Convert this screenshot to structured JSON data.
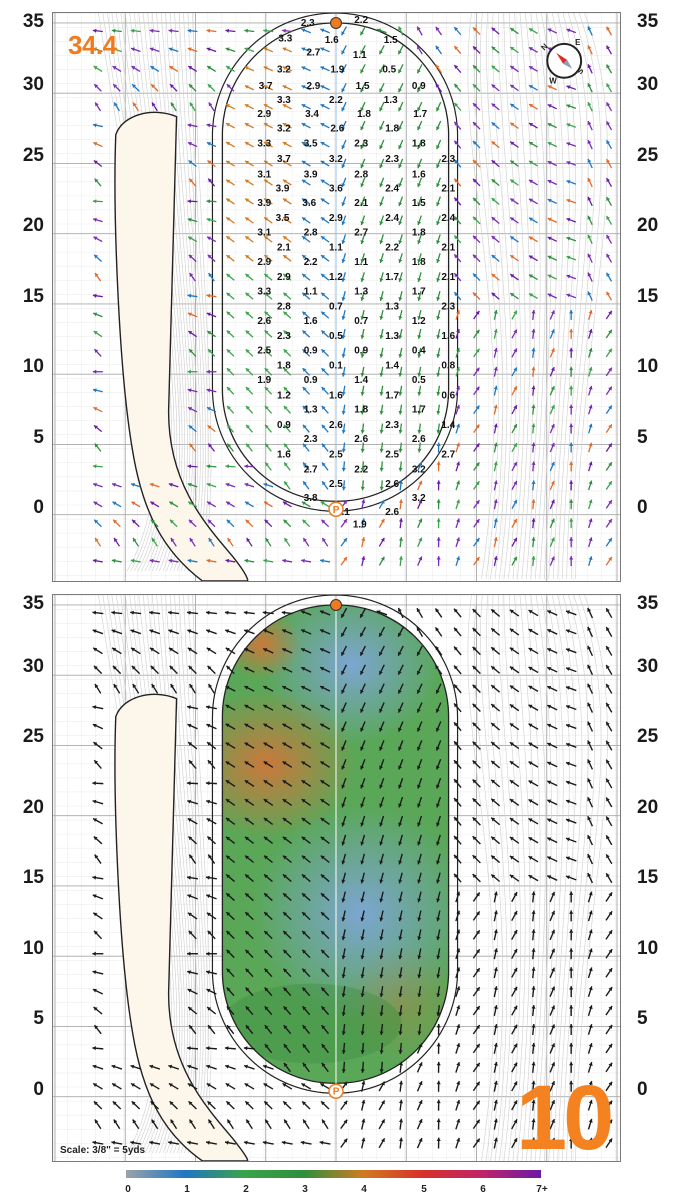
{
  "hole": {
    "number": "10",
    "yardage": "34.4"
  },
  "scale": {
    "label": "Scale: 3/8\" = 5yds"
  },
  "y_axis_ticks": [
    "35",
    "30",
    "25",
    "20",
    "15",
    "10",
    "5",
    "0"
  ],
  "compass": {
    "letters": [
      "N",
      "E",
      "S",
      "W"
    ]
  },
  "slope_legend": {
    "labels": [
      "0",
      "1",
      "2",
      "3",
      "4",
      "5",
      "6",
      "7+"
    ]
  },
  "slope_labels": [
    {
      "value": "2.3",
      "x": 3.6,
      "y": 34.4
    },
    {
      "value": "2.2",
      "x": 7.4,
      "y": 34.6
    },
    {
      "value": "3.3",
      "x": 2.0,
      "y": 33.3
    },
    {
      "value": "1.6",
      "x": 5.3,
      "y": 33.2
    },
    {
      "value": "1.5",
      "x": 9.5,
      "y": 33.2
    },
    {
      "value": "2.7",
      "x": 4.0,
      "y": 32.3
    },
    {
      "value": "1.1",
      "x": 7.3,
      "y": 32.1
    },
    {
      "value": "3.2",
      "x": 1.9,
      "y": 31.1
    },
    {
      "value": "1.9",
      "x": 5.7,
      "y": 31.1
    },
    {
      "value": "0.5",
      "x": 9.4,
      "y": 31.1
    },
    {
      "value": "3.7",
      "x": 0.6,
      "y": 29.9
    },
    {
      "value": "2.9",
      "x": 4.0,
      "y": 29.9
    },
    {
      "value": "1.5",
      "x": 7.5,
      "y": 29.9
    },
    {
      "value": "0.9",
      "x": 11.5,
      "y": 29.9
    },
    {
      "value": "3.3",
      "x": 1.9,
      "y": 28.9
    },
    {
      "value": "2.2",
      "x": 5.6,
      "y": 28.9
    },
    {
      "value": "1.3",
      "x": 9.5,
      "y": 28.9
    },
    {
      "value": "2.9",
      "x": 0.5,
      "y": 27.9
    },
    {
      "value": "3.4",
      "x": 3.9,
      "y": 27.9
    },
    {
      "value": "1.8",
      "x": 7.6,
      "y": 27.9
    },
    {
      "value": "1.7",
      "x": 11.6,
      "y": 27.9
    },
    {
      "value": "3.2",
      "x": 1.9,
      "y": 26.9
    },
    {
      "value": "2.6",
      "x": 5.7,
      "y": 26.9
    },
    {
      "value": "1.8",
      "x": 9.6,
      "y": 26.9
    },
    {
      "value": "3.3",
      "x": 0.5,
      "y": 25.8
    },
    {
      "value": "3.5",
      "x": 3.8,
      "y": 25.8
    },
    {
      "value": "2.3",
      "x": 7.4,
      "y": 25.8
    },
    {
      "value": "1.8",
      "x": 11.5,
      "y": 25.8
    },
    {
      "value": "3.7",
      "x": 1.9,
      "y": 24.7
    },
    {
      "value": "3.2",
      "x": 5.6,
      "y": 24.7
    },
    {
      "value": "2.3",
      "x": 9.6,
      "y": 24.7
    },
    {
      "value": "2.3",
      "x": 13.6,
      "y": 24.7
    },
    {
      "value": "3.1",
      "x": 0.5,
      "y": 23.6
    },
    {
      "value": "3.9",
      "x": 3.8,
      "y": 23.6
    },
    {
      "value": "2.8",
      "x": 7.4,
      "y": 23.6
    },
    {
      "value": "1.6",
      "x": 11.5,
      "y": 23.6
    },
    {
      "value": "3.9",
      "x": 1.8,
      "y": 22.6
    },
    {
      "value": "3.6",
      "x": 5.6,
      "y": 22.6
    },
    {
      "value": "2.4",
      "x": 9.6,
      "y": 22.6
    },
    {
      "value": "2.1",
      "x": 13.6,
      "y": 22.6
    },
    {
      "value": "3.9",
      "x": 0.5,
      "y": 21.6
    },
    {
      "value": "3.6",
      "x": 3.7,
      "y": 21.6
    },
    {
      "value": "2.1",
      "x": 7.4,
      "y": 21.6
    },
    {
      "value": "1.5",
      "x": 11.5,
      "y": 21.6
    },
    {
      "value": "3.5",
      "x": 1.8,
      "y": 20.5
    },
    {
      "value": "2.9",
      "x": 5.6,
      "y": 20.5
    },
    {
      "value": "2.4",
      "x": 9.6,
      "y": 20.5
    },
    {
      "value": "2.4",
      "x": 13.6,
      "y": 20.5
    },
    {
      "value": "3.1",
      "x": 0.5,
      "y": 19.5
    },
    {
      "value": "2.8",
      "x": 3.8,
      "y": 19.5
    },
    {
      "value": "2.7",
      "x": 7.4,
      "y": 19.5
    },
    {
      "value": "1.8",
      "x": 11.5,
      "y": 19.5
    },
    {
      "value": "2.1",
      "x": 1.9,
      "y": 18.4
    },
    {
      "value": "1.1",
      "x": 5.6,
      "y": 18.4
    },
    {
      "value": "2.2",
      "x": 9.6,
      "y": 18.4
    },
    {
      "value": "2.1",
      "x": 13.6,
      "y": 18.4
    },
    {
      "value": "2.9",
      "x": 0.5,
      "y": 17.4
    },
    {
      "value": "2.2",
      "x": 3.8,
      "y": 17.4
    },
    {
      "value": "1.1",
      "x": 7.4,
      "y": 17.4
    },
    {
      "value": "1.8",
      "x": 11.5,
      "y": 17.4
    },
    {
      "value": "2.9",
      "x": 1.9,
      "y": 16.3
    },
    {
      "value": "1.2",
      "x": 5.6,
      "y": 16.3
    },
    {
      "value": "1.7",
      "x": 9.6,
      "y": 16.3
    },
    {
      "value": "2.1",
      "x": 13.6,
      "y": 16.3
    },
    {
      "value": "3.3",
      "x": 0.5,
      "y": 15.3
    },
    {
      "value": "1.1",
      "x": 3.8,
      "y": 15.3
    },
    {
      "value": "1.3",
      "x": 7.4,
      "y": 15.3
    },
    {
      "value": "1.7",
      "x": 11.5,
      "y": 15.3
    },
    {
      "value": "2.8",
      "x": 1.9,
      "y": 14.2
    },
    {
      "value": "0.7",
      "x": 5.6,
      "y": 14.2
    },
    {
      "value": "1.3",
      "x": 9.6,
      "y": 14.2
    },
    {
      "value": "2.3",
      "x": 13.6,
      "y": 14.2
    },
    {
      "value": "2.6",
      "x": 0.5,
      "y": 13.2
    },
    {
      "value": "1.6",
      "x": 3.8,
      "y": 13.2
    },
    {
      "value": "0.7",
      "x": 7.4,
      "y": 13.2
    },
    {
      "value": "1.2",
      "x": 11.5,
      "y": 13.2
    },
    {
      "value": "2.3",
      "x": 1.9,
      "y": 12.1
    },
    {
      "value": "0.5",
      "x": 5.6,
      "y": 12.1
    },
    {
      "value": "1.3",
      "x": 9.6,
      "y": 12.1
    },
    {
      "value": "1.6",
      "x": 13.6,
      "y": 12.1
    },
    {
      "value": "2.5",
      "x": 0.5,
      "y": 11.1
    },
    {
      "value": "0.9",
      "x": 3.8,
      "y": 11.1
    },
    {
      "value": "0.9",
      "x": 7.4,
      "y": 11.1
    },
    {
      "value": "0.4",
      "x": 11.5,
      "y": 11.1
    },
    {
      "value": "1.8",
      "x": 1.9,
      "y": 10.0
    },
    {
      "value": "0.1",
      "x": 5.6,
      "y": 10.0
    },
    {
      "value": "1.4",
      "x": 9.6,
      "y": 10.0
    },
    {
      "value": "0.8",
      "x": 13.6,
      "y": 10.0
    },
    {
      "value": "1.9",
      "x": 0.5,
      "y": 9.0
    },
    {
      "value": "0.9",
      "x": 3.8,
      "y": 9.0
    },
    {
      "value": "1.4",
      "x": 7.4,
      "y": 9.0
    },
    {
      "value": "0.5",
      "x": 11.5,
      "y": 9.0
    },
    {
      "value": "1.2",
      "x": 1.9,
      "y": 7.9
    },
    {
      "value": "1.6",
      "x": 5.6,
      "y": 7.9
    },
    {
      "value": "1.7",
      "x": 9.6,
      "y": 7.9
    },
    {
      "value": "0.6",
      "x": 13.6,
      "y": 7.9
    },
    {
      "value": "1.3",
      "x": 3.8,
      "y": 6.9
    },
    {
      "value": "1.8",
      "x": 7.4,
      "y": 6.9
    },
    {
      "value": "1.7",
      "x": 11.5,
      "y": 6.9
    },
    {
      "value": "0.9",
      "x": 1.9,
      "y": 5.8
    },
    {
      "value": "2.6",
      "x": 5.6,
      "y": 5.8
    },
    {
      "value": "2.3",
      "x": 9.6,
      "y": 5.8
    },
    {
      "value": "1.4",
      "x": 13.6,
      "y": 5.8
    },
    {
      "value": "2.3",
      "x": 3.8,
      "y": 4.8
    },
    {
      "value": "2.6",
      "x": 7.4,
      "y": 4.8
    },
    {
      "value": "2.6",
      "x": 11.5,
      "y": 4.8
    },
    {
      "value": "1.6",
      "x": 1.9,
      "y": 3.7
    },
    {
      "value": "2.5",
      "x": 5.6,
      "y": 3.7
    },
    {
      "value": "2.5",
      "x": 9.6,
      "y": 3.7
    },
    {
      "value": "2.7",
      "x": 13.6,
      "y": 3.7
    },
    {
      "value": "2.7",
      "x": 3.8,
      "y": 2.6
    },
    {
      "value": "2.2",
      "x": 7.4,
      "y": 2.6
    },
    {
      "value": "3.2",
      "x": 11.5,
      "y": 2.6
    },
    {
      "value": "2.5",
      "x": 5.6,
      "y": 1.6
    },
    {
      "value": "2.6",
      "x": 9.6,
      "y": 1.6
    },
    {
      "value": "3.8",
      "x": 3.8,
      "y": 0.6
    },
    {
      "value": "3.2",
      "x": 11.5,
      "y": 0.6
    },
    {
      "value": "1.1",
      "x": 6.1,
      "y": -0.4
    },
    {
      "value": "2.6",
      "x": 9.6,
      "y": -0.4
    },
    {
      "value": "1.9",
      "x": 7.3,
      "y": -1.3
    }
  ]
}
